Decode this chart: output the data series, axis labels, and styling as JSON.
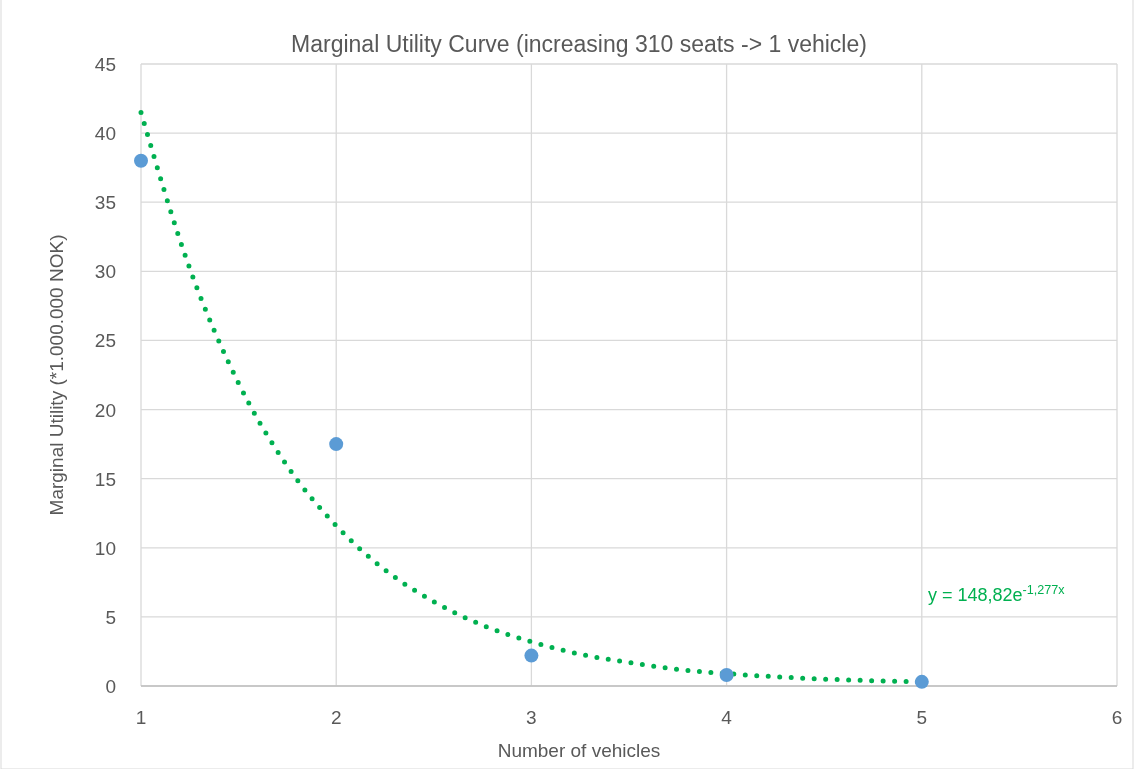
{
  "chart_data": {
    "type": "scatter",
    "title": "Marginal Utility Curve (increasing 310 seats -> 1 vehicle)",
    "xlabel": "Number of vehicles",
    "ylabel": "Marginal Utility (*1.000.000 NOK)",
    "series": [
      {
        "type": "scatter",
        "color": "#5b9bd5",
        "x": [
          1,
          2,
          3,
          4,
          5
        ],
        "values": [
          38,
          17.5,
          2.2,
          0.8,
          0.3
        ],
        "marker": "circle"
      },
      {
        "type": "line",
        "color": "#00b050",
        "line_style": "dotted",
        "x": [
          1,
          1.25,
          1.5,
          1.75,
          2,
          2.25,
          2.5,
          2.75,
          3,
          3.25,
          3.5,
          3.75,
          4,
          4.5,
          5
        ],
        "values": [
          41.5,
          30.2,
          21.9,
          15.9,
          11.6,
          8.4,
          6.1,
          4.4,
          3.2,
          2.3,
          1.7,
          1.2,
          0.9,
          0.5,
          0.3
        ]
      }
    ],
    "annotations": [
      "y = 148,82e$^{-1,277x}$"
    ],
    "xlim": [
      1,
      6
    ],
    "xticks": [
      1,
      2,
      3,
      4,
      5,
      6
    ],
    "ylim": [
      0,
      45
    ],
    "yticks": [
      0,
      5,
      10,
      15,
      20,
      25,
      30,
      35,
      40,
      45
    ],
    "grid": true
  }
}
